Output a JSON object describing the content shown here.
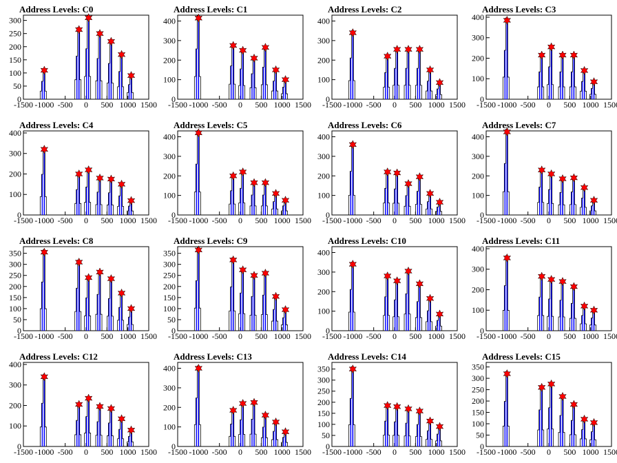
{
  "chart_data": {
    "type": "bar",
    "layout": {
      "rows": 4,
      "cols": 4
    },
    "colors": {
      "bars": "#0000ff",
      "outline": "#000000",
      "markers": "#ff0000",
      "axes": "#000000"
    },
    "xlim": [
      -1500,
      1500
    ],
    "x_ticks": [
      -1500,
      -1000,
      -500,
      0,
      500,
      1000,
      1500
    ],
    "x_tick_labels": [
      "-1500",
      "-1000",
      "-500",
      "0",
      "500",
      "1000",
      "1500"
    ],
    "panels": [
      {
        "title": "Address Levels: C0",
        "ylim": [
          0,
          320
        ],
        "yticks": [
          0,
          50,
          100,
          150,
          200,
          250,
          300
        ],
        "peaks": [
          {
            "x": -1000,
            "y": 110
          },
          {
            "x": -170,
            "y": 265
          },
          {
            "x": 60,
            "y": 310
          },
          {
            "x": 330,
            "y": 250
          },
          {
            "x": 600,
            "y": 220
          },
          {
            "x": 850,
            "y": 170
          },
          {
            "x": 1080,
            "y": 90
          }
        ]
      },
      {
        "title": "Address Levels: C1",
        "ylim": [
          0,
          430
        ],
        "yticks": [
          0,
          100,
          200,
          300,
          400
        ],
        "peaks": [
          {
            "x": -1000,
            "y": 415
          },
          {
            "x": -170,
            "y": 275
          },
          {
            "x": 60,
            "y": 250
          },
          {
            "x": 330,
            "y": 210
          },
          {
            "x": 600,
            "y": 265
          },
          {
            "x": 850,
            "y": 150
          },
          {
            "x": 1080,
            "y": 100
          }
        ]
      },
      {
        "title": "Address Levels: C2",
        "ylim": [
          0,
          430
        ],
        "yticks": [
          0,
          100,
          200,
          300,
          400
        ],
        "peaks": [
          {
            "x": -1000,
            "y": 340
          },
          {
            "x": -170,
            "y": 220
          },
          {
            "x": 60,
            "y": 255
          },
          {
            "x": 330,
            "y": 255
          },
          {
            "x": 600,
            "y": 255
          },
          {
            "x": 850,
            "y": 150
          },
          {
            "x": 1080,
            "y": 85
          }
        ]
      },
      {
        "title": "Address Levels: C3",
        "ylim": [
          0,
          410
        ],
        "yticks": [
          0,
          100,
          200,
          300,
          400
        ],
        "peaks": [
          {
            "x": -1000,
            "y": 385
          },
          {
            "x": -170,
            "y": 215
          },
          {
            "x": 60,
            "y": 255
          },
          {
            "x": 330,
            "y": 215
          },
          {
            "x": 600,
            "y": 215
          },
          {
            "x": 850,
            "y": 140
          },
          {
            "x": 1080,
            "y": 85
          }
        ]
      },
      {
        "title": "Address Levels: C4",
        "ylim": [
          0,
          410
        ],
        "yticks": [
          0,
          100,
          200,
          300,
          400
        ],
        "peaks": [
          {
            "x": -1000,
            "y": 320
          },
          {
            "x": -170,
            "y": 200
          },
          {
            "x": 60,
            "y": 220
          },
          {
            "x": 330,
            "y": 180
          },
          {
            "x": 600,
            "y": 175
          },
          {
            "x": 850,
            "y": 150
          },
          {
            "x": 1080,
            "y": 70
          }
        ]
      },
      {
        "title": "Address Levels: C5",
        "ylim": [
          0,
          430
        ],
        "yticks": [
          0,
          100,
          200,
          300,
          400
        ],
        "peaks": [
          {
            "x": -1000,
            "y": 420
          },
          {
            "x": -170,
            "y": 200
          },
          {
            "x": 60,
            "y": 220
          },
          {
            "x": 330,
            "y": 165
          },
          {
            "x": 600,
            "y": 165
          },
          {
            "x": 850,
            "y": 110
          },
          {
            "x": 1080,
            "y": 75
          }
        ]
      },
      {
        "title": "Address Levels: C6",
        "ylim": [
          0,
          430
        ],
        "yticks": [
          0,
          100,
          200,
          300,
          400
        ],
        "peaks": [
          {
            "x": -1000,
            "y": 360
          },
          {
            "x": -170,
            "y": 220
          },
          {
            "x": 60,
            "y": 215
          },
          {
            "x": 330,
            "y": 160
          },
          {
            "x": 600,
            "y": 195
          },
          {
            "x": 850,
            "y": 110
          },
          {
            "x": 1080,
            "y": 65
          }
        ]
      },
      {
        "title": "Address Levels: C7",
        "ylim": [
          0,
          430
        ],
        "yticks": [
          0,
          100,
          200,
          300,
          400
        ],
        "peaks": [
          {
            "x": -1000,
            "y": 425
          },
          {
            "x": -170,
            "y": 230
          },
          {
            "x": 60,
            "y": 210
          },
          {
            "x": 330,
            "y": 185
          },
          {
            "x": 600,
            "y": 190
          },
          {
            "x": 850,
            "y": 140
          },
          {
            "x": 1080,
            "y": 75
          }
        ]
      },
      {
        "title": "Address Levels: C8",
        "ylim": [
          0,
          380
        ],
        "yticks": [
          0,
          50,
          100,
          150,
          200,
          250,
          300,
          350
        ],
        "peaks": [
          {
            "x": -1000,
            "y": 355
          },
          {
            "x": -170,
            "y": 310
          },
          {
            "x": 60,
            "y": 240
          },
          {
            "x": 330,
            "y": 265
          },
          {
            "x": 600,
            "y": 235
          },
          {
            "x": 850,
            "y": 170
          },
          {
            "x": 1080,
            "y": 100
          }
        ]
      },
      {
        "title": "Address Levels: C9",
        "ylim": [
          0,
          380
        ],
        "yticks": [
          0,
          50,
          100,
          150,
          200,
          250,
          300,
          350
        ],
        "peaks": [
          {
            "x": -1000,
            "y": 365
          },
          {
            "x": -170,
            "y": 320
          },
          {
            "x": 60,
            "y": 275
          },
          {
            "x": 330,
            "y": 250
          },
          {
            "x": 600,
            "y": 260
          },
          {
            "x": 850,
            "y": 155
          },
          {
            "x": 1080,
            "y": 95
          }
        ]
      },
      {
        "title": "Address Levels: C10",
        "ylim": [
          0,
          430
        ],
        "yticks": [
          0,
          100,
          200,
          300,
          400
        ],
        "peaks": [
          {
            "x": -1000,
            "y": 340
          },
          {
            "x": -170,
            "y": 280
          },
          {
            "x": 60,
            "y": 255
          },
          {
            "x": 330,
            "y": 305
          },
          {
            "x": 600,
            "y": 240
          },
          {
            "x": 850,
            "y": 165
          },
          {
            "x": 1080,
            "y": 85
          }
        ]
      },
      {
        "title": "Address Levels: C11",
        "ylim": [
          0,
          410
        ],
        "yticks": [
          0,
          100,
          200,
          300,
          400
        ],
        "peaks": [
          {
            "x": -1000,
            "y": 355
          },
          {
            "x": -170,
            "y": 265
          },
          {
            "x": 60,
            "y": 250
          },
          {
            "x": 330,
            "y": 240
          },
          {
            "x": 600,
            "y": 215
          },
          {
            "x": 850,
            "y": 120
          },
          {
            "x": 1080,
            "y": 100
          }
        ]
      },
      {
        "title": "Address Levels: C12",
        "ylim": [
          0,
          410
        ],
        "yticks": [
          0,
          100,
          200,
          300,
          400
        ],
        "peaks": [
          {
            "x": -1000,
            "y": 340
          },
          {
            "x": -170,
            "y": 205
          },
          {
            "x": 60,
            "y": 235
          },
          {
            "x": 330,
            "y": 195
          },
          {
            "x": 600,
            "y": 185
          },
          {
            "x": 850,
            "y": 135
          },
          {
            "x": 1080,
            "y": 80
          }
        ]
      },
      {
        "title": "Address Levels: C13",
        "ylim": [
          0,
          430
        ],
        "yticks": [
          0,
          100,
          200,
          300,
          400
        ],
        "peaks": [
          {
            "x": -1000,
            "y": 400
          },
          {
            "x": -170,
            "y": 185
          },
          {
            "x": 60,
            "y": 220
          },
          {
            "x": 330,
            "y": 225
          },
          {
            "x": 600,
            "y": 160
          },
          {
            "x": 850,
            "y": 125
          },
          {
            "x": 1080,
            "y": 75
          }
        ]
      },
      {
        "title": "Address Levels: C14",
        "ylim": [
          0,
          380
        ],
        "yticks": [
          0,
          50,
          100,
          150,
          200,
          250,
          300,
          350
        ],
        "peaks": [
          {
            "x": -1000,
            "y": 350
          },
          {
            "x": -170,
            "y": 185
          },
          {
            "x": 60,
            "y": 180
          },
          {
            "x": 330,
            "y": 170
          },
          {
            "x": 600,
            "y": 160
          },
          {
            "x": 850,
            "y": 115
          },
          {
            "x": 1080,
            "y": 90
          }
        ]
      },
      {
        "title": "Address Levels: C15",
        "ylim": [
          0,
          370
        ],
        "yticks": [
          0,
          50,
          100,
          150,
          200,
          250,
          300,
          350
        ],
        "peaks": [
          {
            "x": -1000,
            "y": 320
          },
          {
            "x": -170,
            "y": 260
          },
          {
            "x": 60,
            "y": 275
          },
          {
            "x": 330,
            "y": 220
          },
          {
            "x": 600,
            "y": 185
          },
          {
            "x": 850,
            "y": 120
          },
          {
            "x": 1080,
            "y": 105
          }
        ]
      }
    ]
  }
}
